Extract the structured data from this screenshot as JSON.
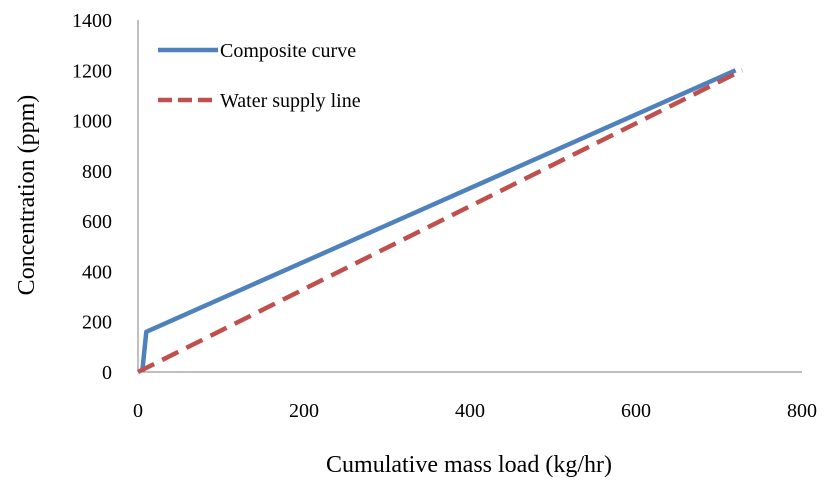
{
  "chart_data": {
    "type": "line",
    "xlabel": "Cumulative mass load (kg/hr)",
    "ylabel": "Concentration (ppm)",
    "xlim": [
      0,
      800
    ],
    "ylim": [
      0,
      1400
    ],
    "x_ticks": [
      "0",
      "200",
      "400",
      "600",
      "800"
    ],
    "y_ticks": [
      "0",
      "200",
      "400",
      "600",
      "800",
      "1000",
      "1200",
      "1400"
    ],
    "grid": false,
    "legend_position": "top-left",
    "series": [
      {
        "name": "Composite curve",
        "color": "#4F81BD",
        "style": "solid",
        "points": [
          [
            5,
            0
          ],
          [
            10,
            160
          ],
          [
            720,
            1200
          ]
        ]
      },
      {
        "name": "Water supply line",
        "color": "#C0504D",
        "style": "dashed",
        "points": [
          [
            0,
            0
          ],
          [
            728,
            1200
          ]
        ]
      }
    ]
  }
}
